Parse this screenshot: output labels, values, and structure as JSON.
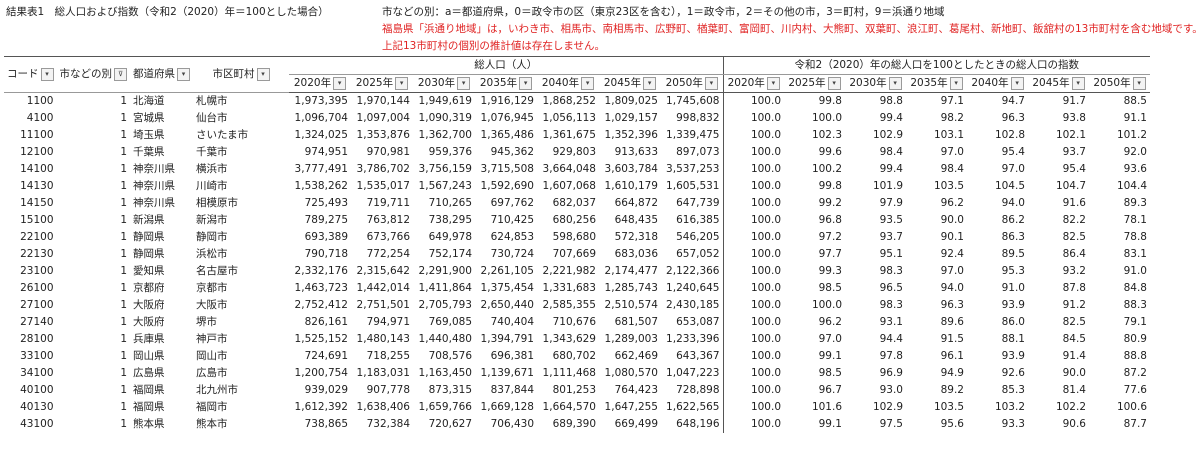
{
  "title": "結果表1　総人口および指数（令和2（2020）年＝100とした場合）",
  "notes": [
    "市などの別：a＝都道府県，0＝政令市の区（東京23区を含む），1＝政令市，2＝その他の市，3＝町村，9＝浜通り地域",
    "福島県「浜通り地域」は，いわき市、相馬市、南相馬市、広野町、楢葉町、富岡町、川内村、大熊町、双葉町、浪江町、葛尾村、新地町、飯舘村の13市町村を含む地域です。",
    "上記13市町村の個別の推計値は存在しません。"
  ],
  "header": {
    "code": "コード",
    "category": "市などの別",
    "prefecture": "都道府県",
    "city": "市区町村",
    "pop_group": "総人口（人）",
    "index_group": "令和2（2020）年の総人口を100としたときの総人口の指数",
    "years": [
      "2020年",
      "2025年",
      "2030年",
      "2035年",
      "2040年",
      "2045年",
      "2050年"
    ],
    "filter_glyph": "▾",
    "filter_active_glyph": "⊽"
  },
  "rows": [
    {
      "code": "1100",
      "cat": "1",
      "pref": "北海道",
      "city": "札幌市",
      "pop": [
        "1,973,395",
        "1,970,144",
        "1,949,619",
        "1,916,129",
        "1,868,252",
        "1,809,025",
        "1,745,608"
      ],
      "idx": [
        "100.0",
        "99.8",
        "98.8",
        "97.1",
        "94.7",
        "91.7",
        "88.5"
      ]
    },
    {
      "code": "4100",
      "cat": "1",
      "pref": "宮城県",
      "city": "仙台市",
      "pop": [
        "1,096,704",
        "1,097,004",
        "1,090,319",
        "1,076,945",
        "1,056,113",
        "1,029,157",
        "998,832"
      ],
      "idx": [
        "100.0",
        "100.0",
        "99.4",
        "98.2",
        "96.3",
        "93.8",
        "91.1"
      ]
    },
    {
      "code": "11100",
      "cat": "1",
      "pref": "埼玉県",
      "city": "さいたま市",
      "pop": [
        "1,324,025",
        "1,353,876",
        "1,362,700",
        "1,365,486",
        "1,361,675",
        "1,352,396",
        "1,339,475"
      ],
      "idx": [
        "100.0",
        "102.3",
        "102.9",
        "103.1",
        "102.8",
        "102.1",
        "101.2"
      ]
    },
    {
      "code": "12100",
      "cat": "1",
      "pref": "千葉県",
      "city": "千葉市",
      "pop": [
        "974,951",
        "970,981",
        "959,376",
        "945,362",
        "929,803",
        "913,633",
        "897,073"
      ],
      "idx": [
        "100.0",
        "99.6",
        "98.4",
        "97.0",
        "95.4",
        "93.7",
        "92.0"
      ]
    },
    {
      "code": "14100",
      "cat": "1",
      "pref": "神奈川県",
      "city": "横浜市",
      "pop": [
        "3,777,491",
        "3,786,702",
        "3,756,159",
        "3,715,508",
        "3,664,048",
        "3,603,784",
        "3,537,253"
      ],
      "idx": [
        "100.0",
        "100.2",
        "99.4",
        "98.4",
        "97.0",
        "95.4",
        "93.6"
      ]
    },
    {
      "code": "14130",
      "cat": "1",
      "pref": "神奈川県",
      "city": "川崎市",
      "pop": [
        "1,538,262",
        "1,535,017",
        "1,567,243",
        "1,592,690",
        "1,607,068",
        "1,610,179",
        "1,605,531"
      ],
      "idx": [
        "100.0",
        "99.8",
        "101.9",
        "103.5",
        "104.5",
        "104.7",
        "104.4"
      ]
    },
    {
      "code": "14150",
      "cat": "1",
      "pref": "神奈川県",
      "city": "相模原市",
      "pop": [
        "725,493",
        "719,711",
        "710,265",
        "697,762",
        "682,037",
        "664,872",
        "647,739"
      ],
      "idx": [
        "100.0",
        "99.2",
        "97.9",
        "96.2",
        "94.0",
        "91.6",
        "89.3"
      ]
    },
    {
      "code": "15100",
      "cat": "1",
      "pref": "新潟県",
      "city": "新潟市",
      "pop": [
        "789,275",
        "763,812",
        "738,295",
        "710,425",
        "680,256",
        "648,435",
        "616,385"
      ],
      "idx": [
        "100.0",
        "96.8",
        "93.5",
        "90.0",
        "86.2",
        "82.2",
        "78.1"
      ]
    },
    {
      "code": "22100",
      "cat": "1",
      "pref": "静岡県",
      "city": "静岡市",
      "pop": [
        "693,389",
        "673,766",
        "649,978",
        "624,853",
        "598,680",
        "572,318",
        "546,205"
      ],
      "idx": [
        "100.0",
        "97.2",
        "93.7",
        "90.1",
        "86.3",
        "82.5",
        "78.8"
      ]
    },
    {
      "code": "22130",
      "cat": "1",
      "pref": "静岡県",
      "city": "浜松市",
      "pop": [
        "790,718",
        "772,254",
        "752,174",
        "730,724",
        "707,669",
        "683,036",
        "657,052"
      ],
      "idx": [
        "100.0",
        "97.7",
        "95.1",
        "92.4",
        "89.5",
        "86.4",
        "83.1"
      ]
    },
    {
      "code": "23100",
      "cat": "1",
      "pref": "愛知県",
      "city": "名古屋市",
      "pop": [
        "2,332,176",
        "2,315,642",
        "2,291,900",
        "2,261,105",
        "2,221,982",
        "2,174,477",
        "2,122,366"
      ],
      "idx": [
        "100.0",
        "99.3",
        "98.3",
        "97.0",
        "95.3",
        "93.2",
        "91.0"
      ]
    },
    {
      "code": "26100",
      "cat": "1",
      "pref": "京都府",
      "city": "京都市",
      "pop": [
        "1,463,723",
        "1,442,014",
        "1,411,864",
        "1,375,454",
        "1,331,683",
        "1,285,743",
        "1,240,645"
      ],
      "idx": [
        "100.0",
        "98.5",
        "96.5",
        "94.0",
        "91.0",
        "87.8",
        "84.8"
      ]
    },
    {
      "code": "27100",
      "cat": "1",
      "pref": "大阪府",
      "city": "大阪市",
      "pop": [
        "2,752,412",
        "2,751,501",
        "2,705,793",
        "2,650,440",
        "2,585,355",
        "2,510,574",
        "2,430,185"
      ],
      "idx": [
        "100.0",
        "100.0",
        "98.3",
        "96.3",
        "93.9",
        "91.2",
        "88.3"
      ]
    },
    {
      "code": "27140",
      "cat": "1",
      "pref": "大阪府",
      "city": "堺市",
      "pop": [
        "826,161",
        "794,971",
        "769,085",
        "740,404",
        "710,676",
        "681,507",
        "653,087"
      ],
      "idx": [
        "100.0",
        "96.2",
        "93.1",
        "89.6",
        "86.0",
        "82.5",
        "79.1"
      ]
    },
    {
      "code": "28100",
      "cat": "1",
      "pref": "兵庫県",
      "city": "神戸市",
      "pop": [
        "1,525,152",
        "1,480,143",
        "1,440,480",
        "1,394,791",
        "1,343,629",
        "1,289,003",
        "1,233,396"
      ],
      "idx": [
        "100.0",
        "97.0",
        "94.4",
        "91.5",
        "88.1",
        "84.5",
        "80.9"
      ]
    },
    {
      "code": "33100",
      "cat": "1",
      "pref": "岡山県",
      "city": "岡山市",
      "pop": [
        "724,691",
        "718,255",
        "708,576",
        "696,381",
        "680,702",
        "662,469",
        "643,367"
      ],
      "idx": [
        "100.0",
        "99.1",
        "97.8",
        "96.1",
        "93.9",
        "91.4",
        "88.8"
      ]
    },
    {
      "code": "34100",
      "cat": "1",
      "pref": "広島県",
      "city": "広島市",
      "pop": [
        "1,200,754",
        "1,183,031",
        "1,163,450",
        "1,139,671",
        "1,111,468",
        "1,080,570",
        "1,047,223"
      ],
      "idx": [
        "100.0",
        "98.5",
        "96.9",
        "94.9",
        "92.6",
        "90.0",
        "87.2"
      ]
    },
    {
      "code": "40100",
      "cat": "1",
      "pref": "福岡県",
      "city": "北九州市",
      "pop": [
        "939,029",
        "907,778",
        "873,315",
        "837,844",
        "801,253",
        "764,423",
        "728,898"
      ],
      "idx": [
        "100.0",
        "96.7",
        "93.0",
        "89.2",
        "85.3",
        "81.4",
        "77.6"
      ]
    },
    {
      "code": "40130",
      "cat": "1",
      "pref": "福岡県",
      "city": "福岡市",
      "pop": [
        "1,612,392",
        "1,638,406",
        "1,659,766",
        "1,669,128",
        "1,664,570",
        "1,647,255",
        "1,622,565"
      ],
      "idx": [
        "100.0",
        "101.6",
        "102.9",
        "103.5",
        "103.2",
        "102.2",
        "100.6"
      ]
    },
    {
      "code": "43100",
      "cat": "1",
      "pref": "熊本県",
      "city": "熊本市",
      "pop": [
        "738,865",
        "732,384",
        "720,627",
        "706,430",
        "689,390",
        "669,499",
        "648,196"
      ],
      "idx": [
        "100.0",
        "99.1",
        "97.5",
        "95.6",
        "93.3",
        "90.6",
        "87.7"
      ]
    }
  ]
}
